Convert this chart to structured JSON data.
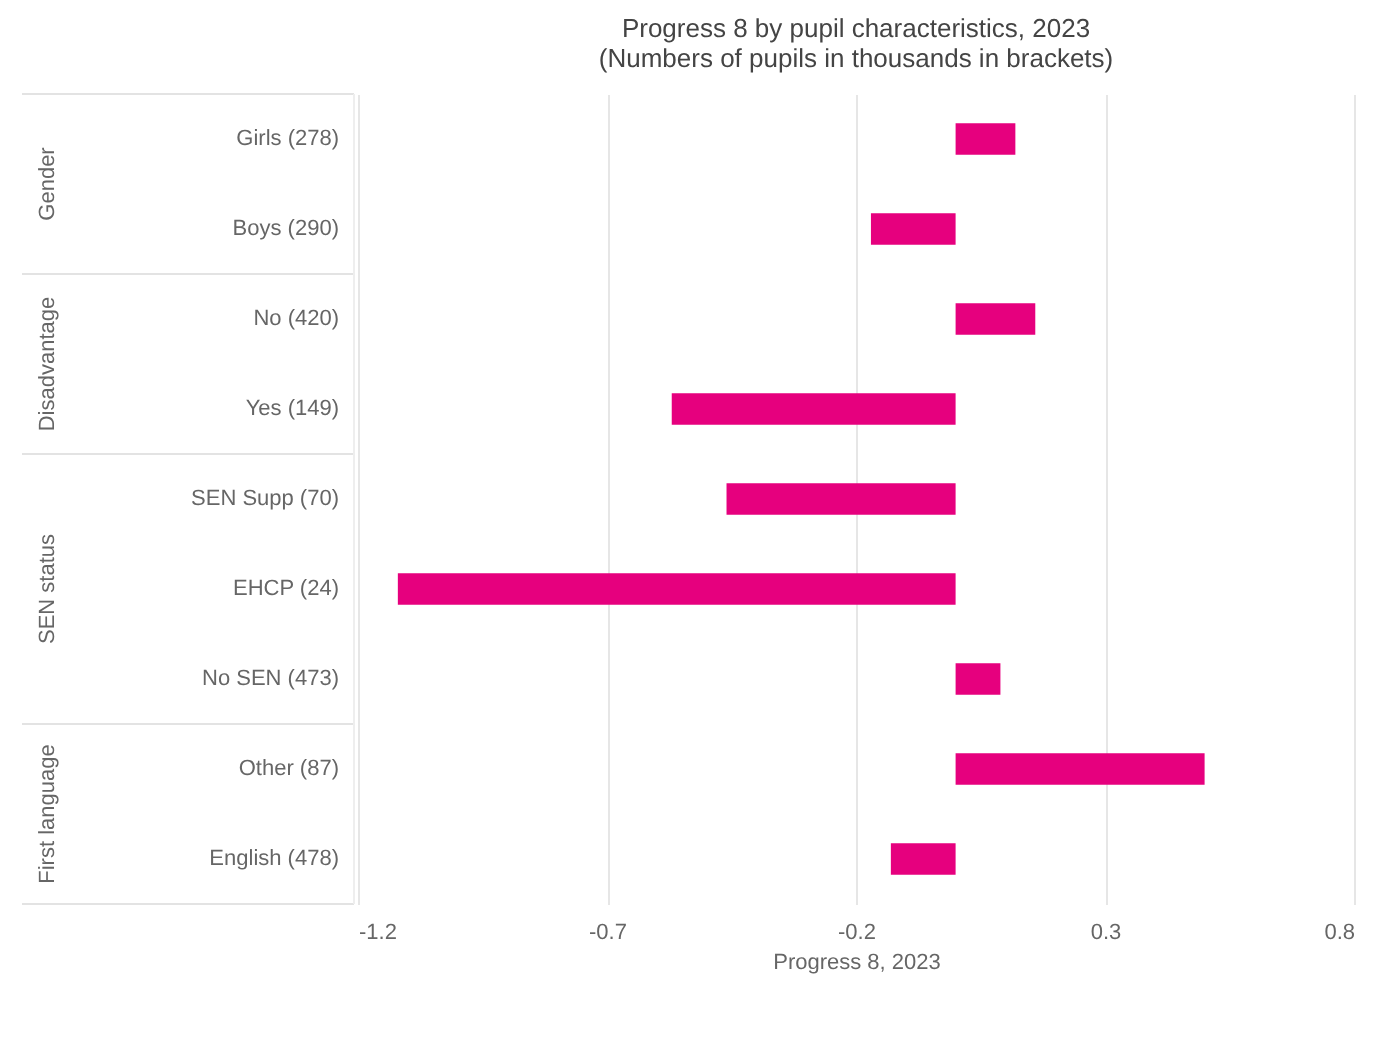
{
  "chart_data": {
    "type": "bar",
    "orientation": "horizontal",
    "title": "Progress 8 by pupil characteristics, 2023",
    "subtitle": "(Numbers of pupils in thousands in brackets)",
    "xlabel": "Progress 8, 2023",
    "categories": [
      "Girls (278)",
      "Boys (290)",
      "No (420)",
      "Yes (149)",
      "SEN Supp (70)",
      "EHCP (24)",
      "No SEN (473)",
      "Other (87)",
      "English (478)"
    ],
    "values": [
      0.12,
      -0.17,
      0.16,
      -0.57,
      -0.46,
      -1.12,
      0.09,
      0.5,
      -0.13
    ],
    "color": "#e6007e",
    "xlim": [
      -1.2,
      0.8
    ],
    "xticks": [
      -1.2,
      -0.7,
      -0.2,
      0.3,
      0.8
    ],
    "grid": "x",
    "annotations": [
      "Gender",
      "Disadvantage",
      "SEN status",
      "First language"
    ]
  }
}
